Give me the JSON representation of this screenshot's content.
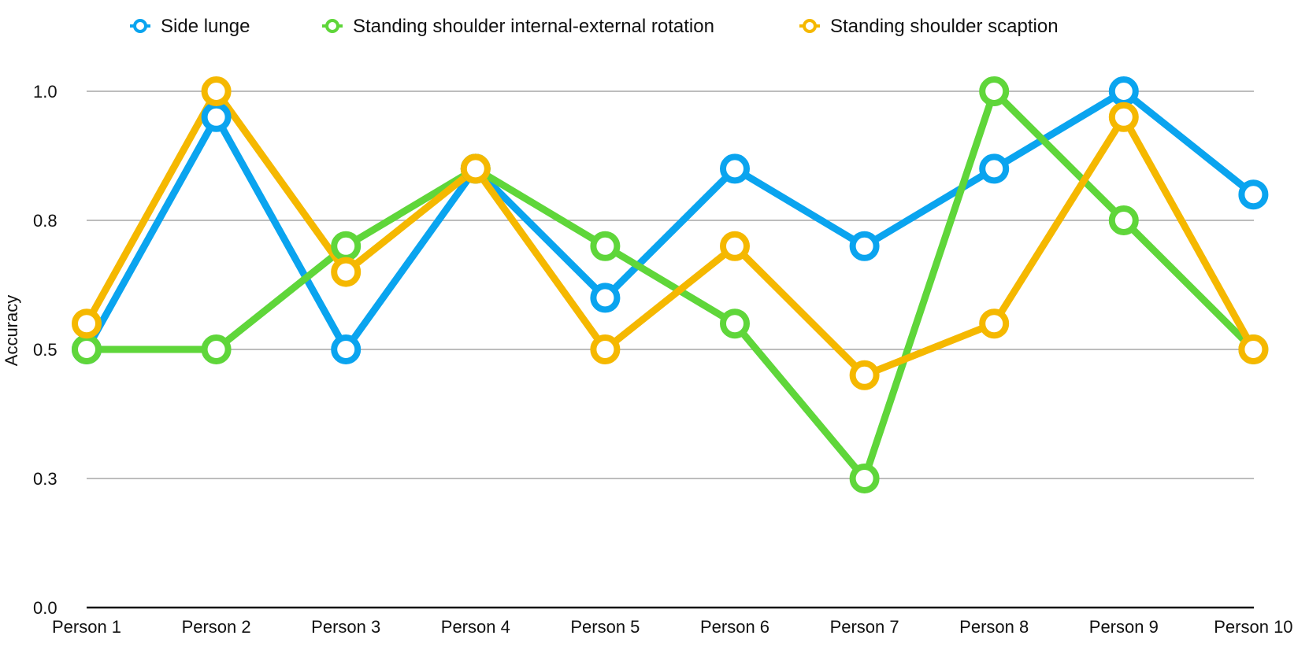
{
  "chart_data": {
    "type": "line",
    "title": "",
    "xlabel": "",
    "ylabel": "Accuracy",
    "ylim": [
      0,
      1.0
    ],
    "y_ticks": [
      0.0,
      0.25,
      0.5,
      0.75,
      1.0
    ],
    "y_tick_labels": [
      "0.0",
      "0.3",
      "0.5",
      "0.8",
      "1.0"
    ],
    "grid": true,
    "legend_position": "top",
    "categories": [
      "Person 1",
      "Person 2",
      "Person 3",
      "Person 4",
      "Person 5",
      "Person 6",
      "Person 7",
      "Person 8",
      "Person 9",
      "Person 10"
    ],
    "series": [
      {
        "name": "Side lunge",
        "color": "#0aa4ef",
        "values": [
          0.5,
          0.95,
          0.5,
          0.85,
          0.6,
          0.85,
          0.7,
          0.85,
          1.0,
          0.8
        ]
      },
      {
        "name": "Standing shoulder internal-external rotation",
        "color": "#5fd63a",
        "values": [
          0.5,
          0.5,
          0.7,
          0.85,
          0.7,
          0.55,
          0.25,
          1.0,
          0.75,
          0.5
        ]
      },
      {
        "name": "Standing shoulder scaption",
        "color": "#f5b800",
        "values": [
          0.55,
          1.0,
          0.65,
          0.85,
          0.5,
          0.7,
          0.45,
          0.55,
          0.95,
          0.5
        ]
      }
    ]
  }
}
